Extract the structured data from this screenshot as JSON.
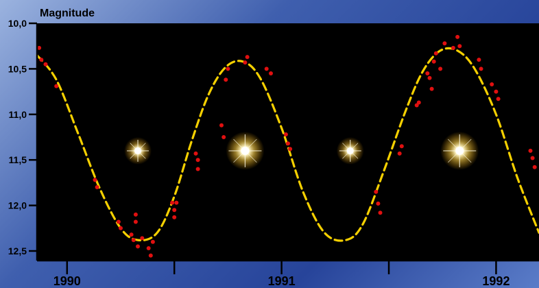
{
  "chart_data": {
    "type": "line",
    "ylabel": "Magnitude",
    "yticks": [
      {
        "value": 10.0,
        "label": "10,0"
      },
      {
        "value": 10.5,
        "label": "10,5"
      },
      {
        "value": 11.0,
        "label": "11,0"
      },
      {
        "value": 11.5,
        "label": "11,5"
      },
      {
        "value": 12.0,
        "label": "12,0"
      },
      {
        "value": 12.5,
        "label": "12,5"
      }
    ],
    "ylim": [
      10.0,
      12.6
    ],
    "y_inverted": true,
    "xlim": [
      1989.86,
      1992.2
    ],
    "xticks_major": [
      {
        "value": 1990,
        "label": "1990"
      },
      {
        "value": 1991,
        "label": "1991"
      },
      {
        "value": 1992,
        "label": "1992"
      }
    ],
    "xticks_minor": [
      1990.5,
      1991.5
    ],
    "series": [
      {
        "kind": "fit",
        "color": "#f5d000",
        "style": "dashed",
        "points": [
          [
            1989.86,
            10.35
          ],
          [
            1989.95,
            10.62
          ],
          [
            1990.05,
            11.2
          ],
          [
            1990.15,
            11.8
          ],
          [
            1990.25,
            12.25
          ],
          [
            1990.33,
            12.38
          ],
          [
            1990.42,
            12.3
          ],
          [
            1990.5,
            11.9
          ],
          [
            1990.58,
            11.3
          ],
          [
            1990.66,
            10.78
          ],
          [
            1990.74,
            10.48
          ],
          [
            1990.82,
            10.42
          ],
          [
            1990.9,
            10.6
          ],
          [
            1991.0,
            11.15
          ],
          [
            1991.1,
            11.85
          ],
          [
            1991.2,
            12.3
          ],
          [
            1991.3,
            12.38
          ],
          [
            1991.38,
            12.2
          ],
          [
            1991.48,
            11.6
          ],
          [
            1991.58,
            10.95
          ],
          [
            1991.66,
            10.52
          ],
          [
            1991.74,
            10.3
          ],
          [
            1991.82,
            10.3
          ],
          [
            1991.9,
            10.5
          ],
          [
            1992.0,
            11.0
          ],
          [
            1992.1,
            11.7
          ],
          [
            1992.2,
            12.3
          ]
        ]
      },
      {
        "kind": "observations",
        "color": "#e01010",
        "points": [
          [
            1989.87,
            10.27
          ],
          [
            1989.88,
            10.4
          ],
          [
            1989.9,
            10.45
          ],
          [
            1989.95,
            10.69
          ],
          [
            1990.13,
            11.72
          ],
          [
            1990.14,
            11.8
          ],
          [
            1990.24,
            12.18
          ],
          [
            1990.25,
            12.25
          ],
          [
            1990.3,
            12.32
          ],
          [
            1990.31,
            12.38
          ],
          [
            1990.32,
            12.1
          ],
          [
            1990.32,
            12.18
          ],
          [
            1990.33,
            12.45
          ],
          [
            1990.35,
            12.36
          ],
          [
            1990.38,
            12.47
          ],
          [
            1990.39,
            12.55
          ],
          [
            1990.4,
            12.4
          ],
          [
            1990.49,
            11.97
          ],
          [
            1990.5,
            12.05
          ],
          [
            1990.5,
            12.13
          ],
          [
            1990.51,
            11.97
          ],
          [
            1990.6,
            11.43
          ],
          [
            1990.61,
            11.5
          ],
          [
            1990.61,
            11.6
          ],
          [
            1990.72,
            11.12
          ],
          [
            1990.73,
            11.25
          ],
          [
            1990.74,
            10.62
          ],
          [
            1990.75,
            10.5
          ],
          [
            1990.83,
            10.43
          ],
          [
            1990.84,
            10.37
          ],
          [
            1990.93,
            10.5
          ],
          [
            1990.95,
            10.55
          ],
          [
            1991.02,
            11.22
          ],
          [
            1991.03,
            11.32
          ],
          [
            1991.04,
            11.38
          ],
          [
            1991.44,
            11.85
          ],
          [
            1991.45,
            11.98
          ],
          [
            1991.46,
            12.08
          ],
          [
            1991.55,
            11.43
          ],
          [
            1991.56,
            11.35
          ],
          [
            1991.63,
            10.9
          ],
          [
            1991.64,
            10.87
          ],
          [
            1991.68,
            10.55
          ],
          [
            1991.69,
            10.6
          ],
          [
            1991.7,
            10.72
          ],
          [
            1991.71,
            10.42
          ],
          [
            1991.72,
            10.33
          ],
          [
            1991.74,
            10.5
          ],
          [
            1991.76,
            10.22
          ],
          [
            1991.8,
            10.27
          ],
          [
            1991.82,
            10.15
          ],
          [
            1991.83,
            10.25
          ],
          [
            1991.92,
            10.4
          ],
          [
            1991.93,
            10.5
          ],
          [
            1991.98,
            10.67
          ],
          [
            1992.0,
            10.75
          ],
          [
            1992.01,
            10.83
          ],
          [
            1992.16,
            11.4
          ],
          [
            1992.17,
            11.48
          ],
          [
            1992.18,
            11.58
          ]
        ]
      }
    ],
    "star_markers": [
      {
        "x": 1990.33,
        "y": 11.4,
        "brightness": "dim"
      },
      {
        "x": 1990.83,
        "y": 11.4,
        "brightness": "bright"
      },
      {
        "x": 1991.32,
        "y": 11.4,
        "brightness": "dim"
      },
      {
        "x": 1991.83,
        "y": 11.4,
        "brightness": "bright"
      }
    ],
    "grid": false,
    "legend": "none"
  }
}
